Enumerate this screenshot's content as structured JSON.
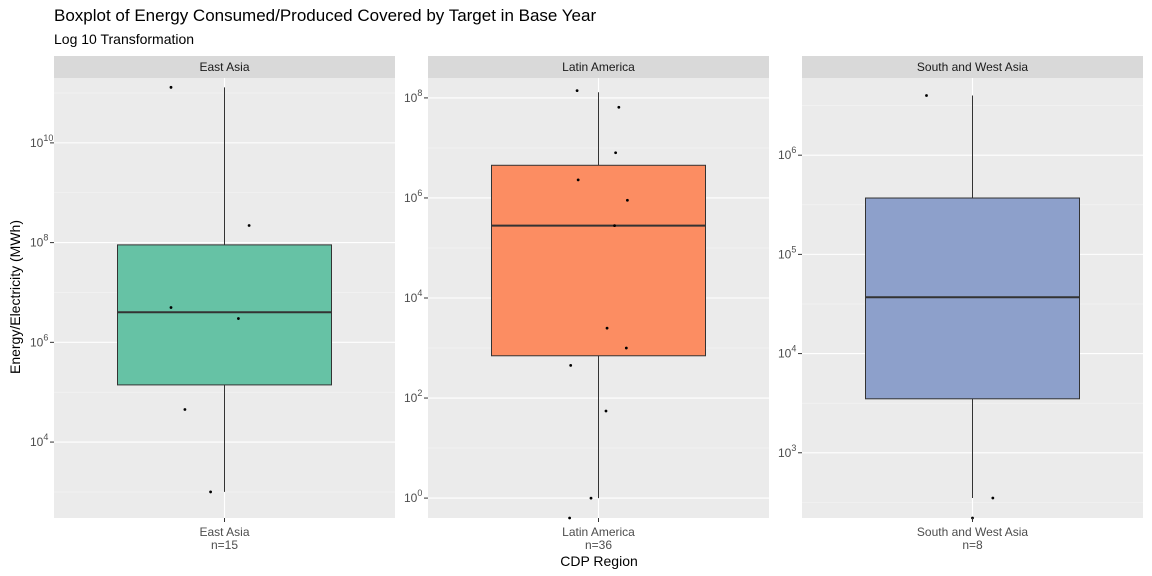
{
  "chart_data": {
    "type": "boxplot",
    "title": "Boxplot of Energy Consumed/Produced Covered by Target in Base Year",
    "subtitle": "Log 10 Transformation",
    "xlabel": "CDP Region",
    "ylabel": "Energy/Electricity (MWh)",
    "scale": "log10",
    "grid": true,
    "legend": "none",
    "panels": [
      {
        "strip": "East Asia",
        "category": "East Asia",
        "n_label": "n=15",
        "color": "#66c2a5",
        "ylim": [
          300,
          200000000000.0
        ],
        "y_ticks": [
          {
            "exp": 4
          },
          {
            "exp": 6
          },
          {
            "exp": 8
          },
          {
            "exp": 10
          }
        ],
        "box": {
          "lower_whisker": 1000,
          "q1": 140000,
          "median": 4000000,
          "q3": 90000000,
          "upper_whisker": 130000000000
        },
        "points": [
          {
            "x": -0.5,
            "y": 130000000000
          },
          {
            "x": 0.23,
            "y": 220000000
          },
          {
            "x": -0.5,
            "y": 5000000
          },
          {
            "x": 0.13,
            "y": 3000000
          },
          {
            "x": -0.37,
            "y": 45000
          },
          {
            "x": -0.13,
            "y": 1000
          }
        ]
      },
      {
        "strip": "Latin America",
        "category": "Latin America",
        "n_label": "n=36",
        "color": "#fc8d62",
        "ylim": [
          0.4,
          250000000.0
        ],
        "y_ticks": [
          {
            "exp": 0
          },
          {
            "exp": 2
          },
          {
            "exp": 4
          },
          {
            "exp": 6
          },
          {
            "exp": 8
          }
        ],
        "box": {
          "lower_whisker": 1,
          "q1": 700,
          "median": 280000,
          "q3": 4500000,
          "upper_whisker": 130000000
        },
        "points": [
          {
            "x": -0.2,
            "y": 140000000
          },
          {
            "x": 0.19,
            "y": 65000000
          },
          {
            "x": 0.16,
            "y": 8000000
          },
          {
            "x": -0.19,
            "y": 2300000
          },
          {
            "x": 0.27,
            "y": 900000
          },
          {
            "x": 0.15,
            "y": 280000
          },
          {
            "x": 0.08,
            "y": 2500
          },
          {
            "x": 0.26,
            "y": 1000
          },
          {
            "x": -0.26,
            "y": 450
          },
          {
            "x": 0.07,
            "y": 55
          },
          {
            "x": -0.07,
            "y": 1
          },
          {
            "x": -0.27,
            "y": 0.4
          }
        ]
      },
      {
        "strip": "South and West Asia",
        "category": "South and West Asia",
        "n_label": "n=8",
        "color": "#8da0cb",
        "ylim": [
          220,
          6000000
        ],
        "y_ticks": [
          {
            "exp": 3
          },
          {
            "exp": 4
          },
          {
            "exp": 5
          },
          {
            "exp": 6
          }
        ],
        "box": {
          "lower_whisker": 350,
          "q1": 3500,
          "median": 37000,
          "q3": 370000,
          "upper_whisker": 4000000
        },
        "points": [
          {
            "x": -0.43,
            "y": 4000000
          },
          {
            "x": 0.19,
            "y": 350
          },
          {
            "x": 0.0,
            "y": 220
          }
        ]
      }
    ]
  }
}
